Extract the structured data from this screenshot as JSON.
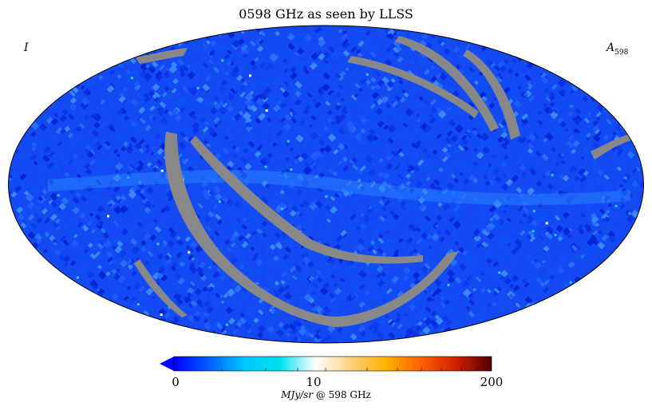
{
  "title": "0598 GHz as seen by LLSS",
  "label_left": "I",
  "label_right_main": "A",
  "label_right_sub": "598",
  "colorbar": {
    "ticks": [
      "0",
      "10",
      "200"
    ],
    "unit_italic": "MJy/sr",
    "unit_suffix": " @ 598 GHz",
    "colors": [
      "#0000ff",
      "#0060ff",
      "#00c8ff",
      "#00e0f0",
      "#ffffff",
      "#ffd080",
      "#ffb000",
      "#ff6000",
      "#d02000",
      "#500000"
    ]
  },
  "map": {
    "projection": "Mollweide",
    "base_color": "#1a4cf5",
    "mask_color": "#888888"
  }
}
